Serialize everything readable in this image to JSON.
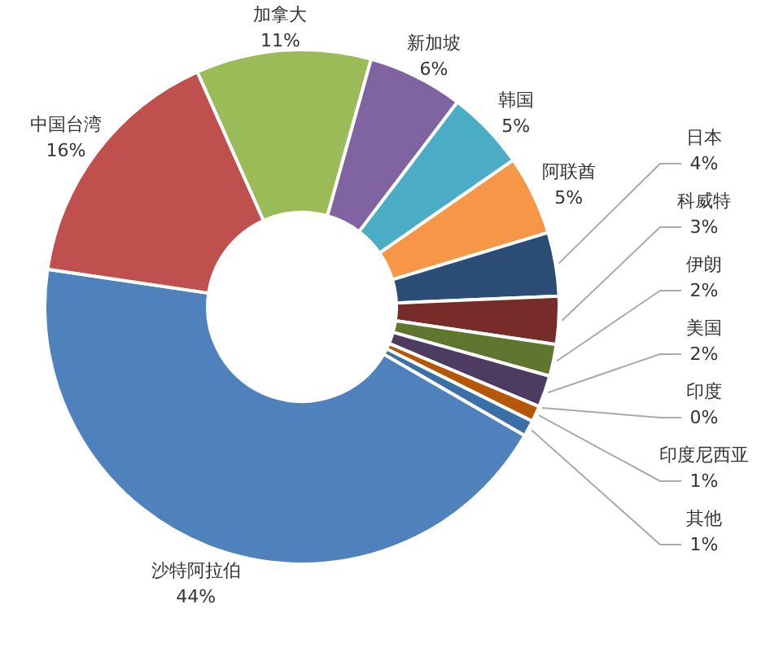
{
  "chart_data": {
    "type": "donut",
    "categories": [
      "沙特阿拉伯",
      "中国台湾",
      "加拿大",
      "新加坡",
      "韩国",
      "阿联酋",
      "日本",
      "科威特",
      "伊朗",
      "美国",
      "印度",
      "印度尼西亚",
      "其他"
    ],
    "values": [
      44,
      16,
      11,
      6,
      5,
      5,
      4,
      3,
      2,
      2,
      0,
      1,
      1
    ],
    "value_labels": [
      "44%",
      "16%",
      "11%",
      "6%",
      "5%",
      "5%",
      "4%",
      "3%",
      "2%",
      "2%",
      "0%",
      "1%",
      "1%"
    ],
    "colors": [
      "#4f81bd",
      "#c0504d",
      "#9bbb59",
      "#8064a2",
      "#4bacc6",
      "#f79646",
      "#2c4d75",
      "#772c2a",
      "#5f7530",
      "#4d3b62",
      "#276a7c",
      "#b65708",
      "#3a6fa8"
    ]
  }
}
